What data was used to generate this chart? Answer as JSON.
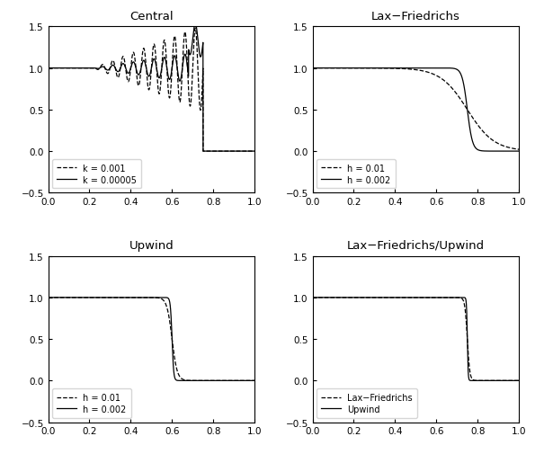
{
  "title_central": "Central",
  "title_laxfriedrichs": "Lax−Friedrichs",
  "title_upwind": "Upwind",
  "title_laxupwind": "Lax−Friedrichs/Upwind",
  "xlim": [
    0,
    1
  ],
  "ylim": [
    -0.5,
    1.5
  ],
  "xticks": [
    0,
    0.2,
    0.4,
    0.6,
    0.8,
    1
  ],
  "yticks": [
    -0.5,
    0,
    0.5,
    1,
    1.5
  ],
  "legend_central": [
    "k = 0.001",
    "k = 0.00005"
  ],
  "legend_lf": [
    "h = 0.01",
    "h = 0.002"
  ],
  "legend_upwind": [
    "h = 0.01",
    "h = 0.002"
  ],
  "legend_laxupwind": [
    "Lax−Friedrichs",
    "Upwind"
  ],
  "line_color": "#000000",
  "background_color": "#ffffff"
}
